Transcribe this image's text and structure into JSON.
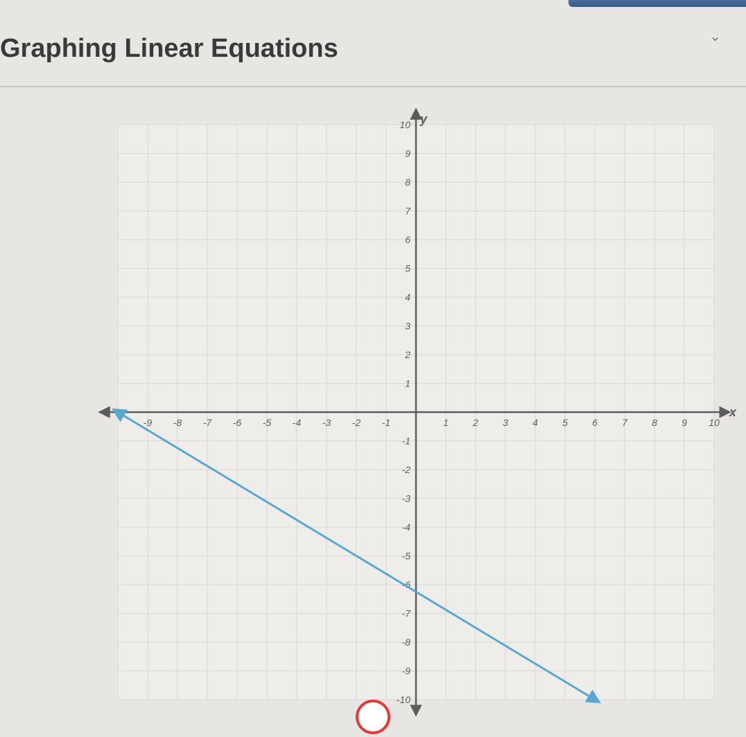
{
  "header": {
    "title": "Graphing Linear Equations"
  },
  "chart": {
    "type": "line",
    "xlim": [
      -10,
      10
    ],
    "ylim": [
      -10,
      10
    ],
    "xtick_step": 1,
    "ytick_step": 1,
    "x_axis_label": "x",
    "y_axis_label": "y",
    "x_ticks": [
      -9,
      -8,
      -7,
      -6,
      -5,
      -4,
      -3,
      -2,
      -1,
      1,
      2,
      3,
      4,
      5,
      6,
      7,
      8,
      9,
      10
    ],
    "y_ticks": [
      10,
      9,
      8,
      7,
      6,
      5,
      4,
      3,
      2,
      1,
      -1,
      -2,
      -3,
      -4,
      -5,
      -6,
      -7,
      -8,
      -9,
      -10
    ],
    "grid_color": "#d9d7d4",
    "axis_color": "#5c5c5c",
    "background_color": "#efedea",
    "tick_label_color": "#5c5c5c",
    "tick_label_fontsize": 14,
    "axis_label_fontsize": 18,
    "line": {
      "color": "#5aa7cf",
      "width": 3,
      "points": [
        [
          -10,
          0
        ],
        [
          6,
          -10
        ]
      ],
      "arrow_start": true,
      "arrow_end": true
    }
  }
}
